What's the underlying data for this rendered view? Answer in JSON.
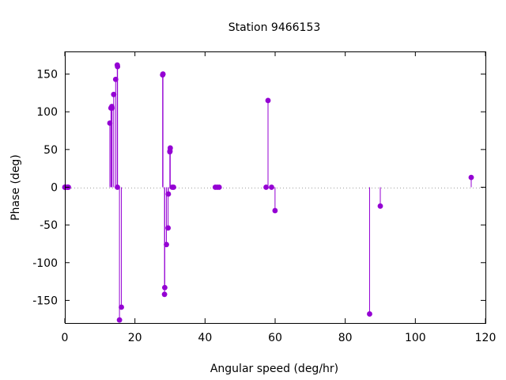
{
  "chart_data": {
    "type": "scatter",
    "style": "impulses-with-points",
    "title": "Station 9466153",
    "xlabel": "Angular speed (deg/hr)",
    "ylabel": "Phase (deg)",
    "xlim": [
      0,
      120
    ],
    "ylim": [
      -180,
      180
    ],
    "xticks": [
      0,
      20,
      40,
      60,
      80,
      100,
      120
    ],
    "yticks": [
      -150,
      -100,
      -50,
      0,
      50,
      100,
      150
    ],
    "grid": false,
    "legend": "none",
    "zero_line": "dotted",
    "series_color": "#9400d3",
    "points": [
      {
        "x": 0.0,
        "y": 0
      },
      {
        "x": 0.04,
        "y": 0
      },
      {
        "x": 0.08,
        "y": 0
      },
      {
        "x": 0.54,
        "y": 0
      },
      {
        "x": 0.82,
        "y": 0
      },
      {
        "x": 1.02,
        "y": 0
      },
      {
        "x": 12.85,
        "y": 85
      },
      {
        "x": 13.16,
        "y": 105
      },
      {
        "x": 13.4,
        "y": 107
      },
      {
        "x": 13.47,
        "y": 105
      },
      {
        "x": 13.94,
        "y": 123
      },
      {
        "x": 14.5,
        "y": 143
      },
      {
        "x": 14.96,
        "y": 162
      },
      {
        "x": 15.0,
        "y": 0
      },
      {
        "x": 15.04,
        "y": 160
      },
      {
        "x": 15.59,
        "y": -176
      },
      {
        "x": 16.14,
        "y": -159
      },
      {
        "x": 27.9,
        "y": 149
      },
      {
        "x": 28.0,
        "y": 150
      },
      {
        "x": 28.44,
        "y": -142
      },
      {
        "x": 28.51,
        "y": -133
      },
      {
        "x": 28.99,
        "y": -76
      },
      {
        "x": 29.46,
        "y": -54
      },
      {
        "x": 29.53,
        "y": -9
      },
      {
        "x": 29.96,
        "y": 47
      },
      {
        "x": 30.0,
        "y": 48
      },
      {
        "x": 30.08,
        "y": 52
      },
      {
        "x": 30.63,
        "y": 0
      },
      {
        "x": 31.02,
        "y": 0
      },
      {
        "x": 42.93,
        "y": 0
      },
      {
        "x": 43.48,
        "y": 0
      },
      {
        "x": 44.03,
        "y": 0
      },
      {
        "x": 57.42,
        "y": 0
      },
      {
        "x": 57.97,
        "y": 115
      },
      {
        "x": 58.98,
        "y": 0
      },
      {
        "x": 59.97,
        "y": -31
      },
      {
        "x": 86.95,
        "y": -168
      },
      {
        "x": 90.0,
        "y": -25
      },
      {
        "x": 115.94,
        "y": 13
      }
    ]
  }
}
